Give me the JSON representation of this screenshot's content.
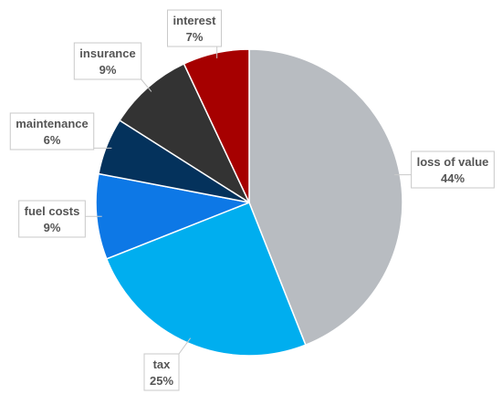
{
  "chart_data": {
    "type": "pie",
    "title": "",
    "start_angle_deg": 0,
    "direction": "clockwise",
    "slices": [
      {
        "label": "loss of value",
        "value": 44,
        "value_label": "44%",
        "color": "#b8bcc1"
      },
      {
        "label": "tax",
        "value": 25,
        "value_label": "25%",
        "color": "#00aeef"
      },
      {
        "label": "fuel costs",
        "value": 9,
        "value_label": "9%",
        "color": "#0d78e6"
      },
      {
        "label": "maintenance",
        "value": 6,
        "value_label": "6%",
        "color": "#04325c"
      },
      {
        "label": "insurance",
        "value": 9,
        "value_label": "9%",
        "color": "#333333"
      },
      {
        "label": "interest",
        "value": 7,
        "value_label": "7%",
        "color": "#a60000"
      }
    ]
  }
}
